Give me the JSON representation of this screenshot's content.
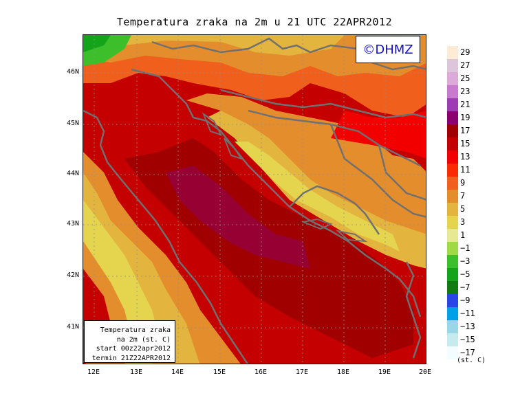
{
  "title": "Temperatura zraka na 2m u 21 UTC 22APR2012",
  "logo": "©DHMZ",
  "info_box": {
    "line1": "Temperatura zraka",
    "line2": "na 2m (st. C)",
    "line3": "start 00z22apr2012",
    "line4": "termin 21Z22APR2012"
  },
  "lat_labels": [
    "46N",
    "45N",
    "44N",
    "43N",
    "42N",
    "41N"
  ],
  "lon_labels": [
    "12E",
    "13E",
    "14E",
    "15E",
    "16E",
    "17E",
    "18E",
    "19E",
    "20E"
  ],
  "legend": {
    "labels": [
      "29",
      "27",
      "25",
      "23",
      "21",
      "19",
      "17",
      "15",
      "13",
      "11",
      "9",
      "7",
      "5",
      "3",
      "1",
      "−1",
      "−3",
      "−5",
      "−7",
      "−9",
      "−11",
      "−13",
      "−15",
      "−17"
    ],
    "colors": [
      "#fdebd6",
      "#ddc6dc",
      "#dcaad8",
      "#c87ace",
      "#9d3cb3",
      "#8a0071",
      "#a00000",
      "#c40000",
      "#f20000",
      "#fb2a00",
      "#f05f1b",
      "#e48d2c",
      "#e3b43e",
      "#e5d54e",
      "#e6e992",
      "#a0d846",
      "#3cbf2a",
      "#14a41a",
      "#117a11",
      "#2a44e6",
      "#00a0e8",
      "#9ad6e8",
      "#c6eaee",
      "#f3fdff"
    ],
    "units": "(st. C)"
  }
}
